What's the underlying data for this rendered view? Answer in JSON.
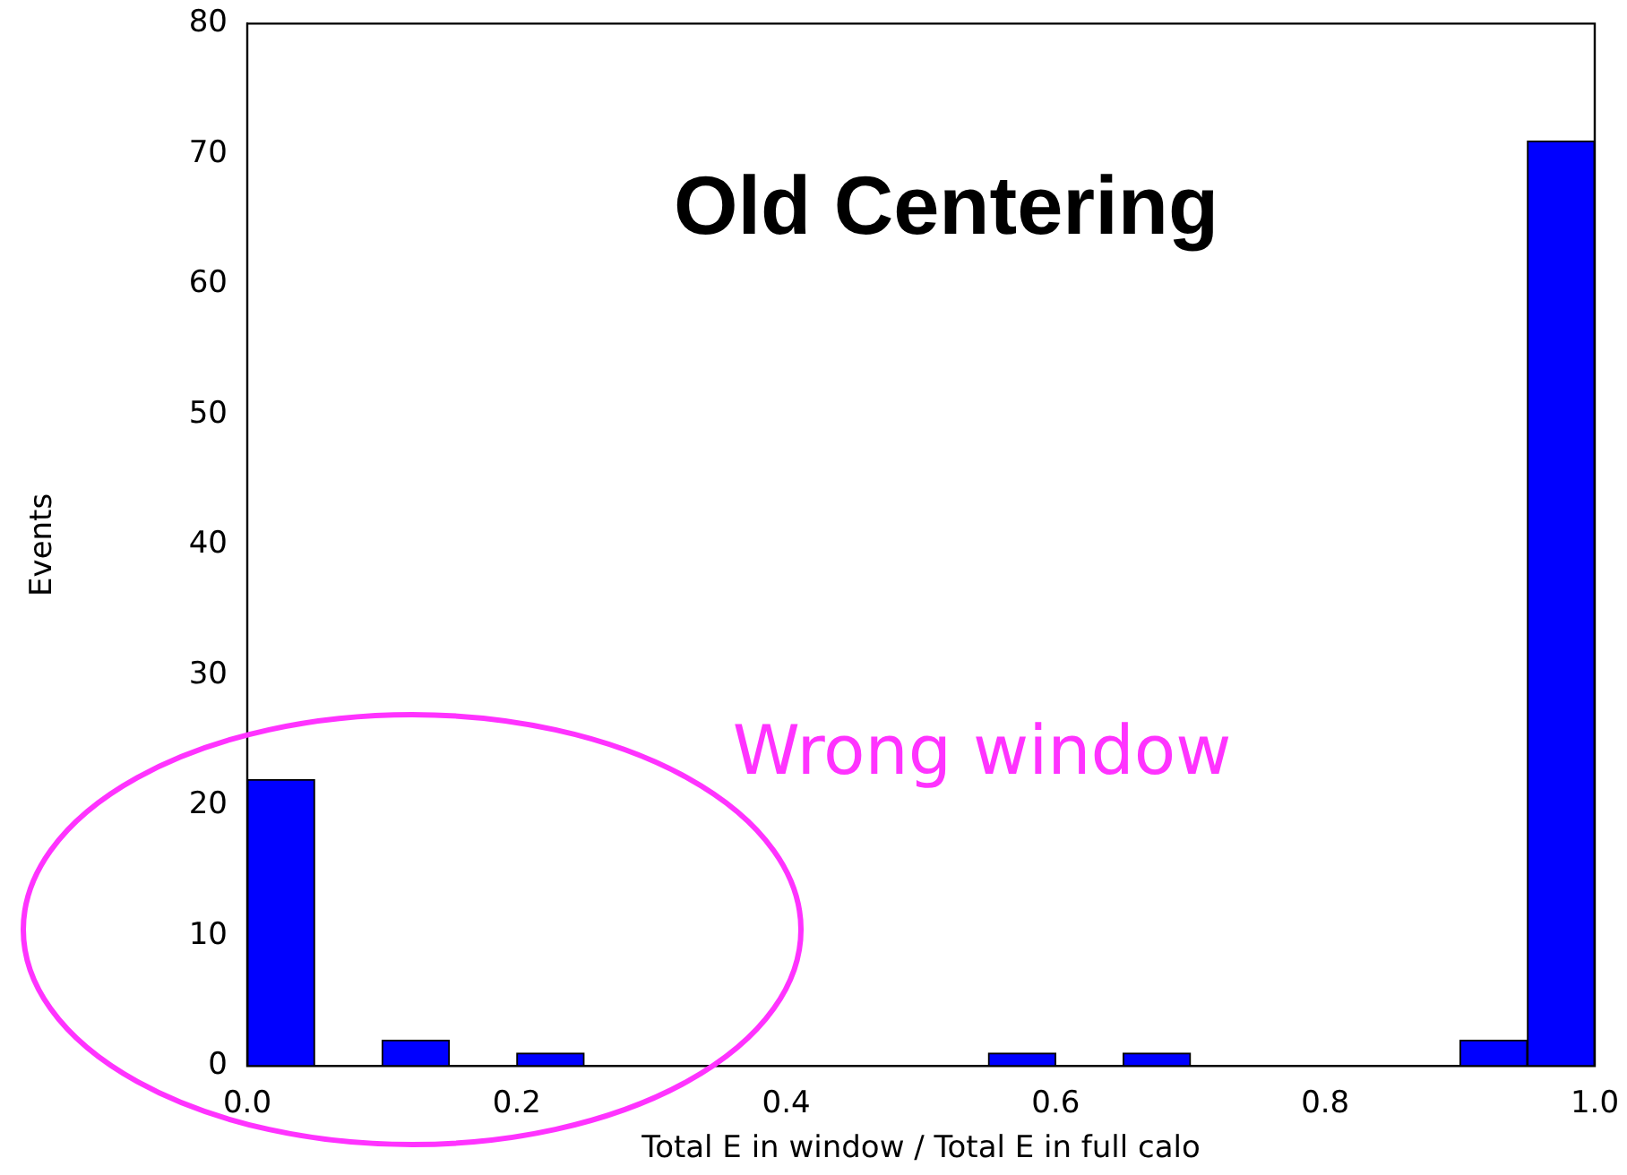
{
  "chart_data": {
    "type": "histogram",
    "title": "Old Centering",
    "xlabel": "Total E in window / Total E in full calo",
    "ylabel": "Events",
    "bins": [
      0,
      0.05,
      0.1,
      0.15,
      0.2,
      0.25,
      0.3,
      0.35,
      0.4,
      0.45,
      0.5,
      0.55,
      0.6,
      0.65,
      0.7,
      0.75,
      0.8,
      0.85,
      0.9,
      0.95,
      1.0
    ],
    "values": [
      22,
      0,
      2,
      0,
      1,
      0,
      0,
      0,
      0,
      0,
      0,
      1,
      0,
      1,
      0,
      0,
      0,
      0,
      2,
      71
    ],
    "color": "#0000ff",
    "xlim": [
      0,
      1
    ],
    "xticks": [
      {
        "value": 0,
        "label": "0.0"
      },
      {
        "value": 0.2,
        "label": "0.2"
      },
      {
        "value": 0.4,
        "label": "0.4"
      },
      {
        "value": 0.6,
        "label": "0.6"
      },
      {
        "value": 0.8,
        "label": "0.8"
      },
      {
        "value": 1,
        "label": "1.0"
      }
    ],
    "ylim": [
      0,
      80
    ],
    "yticks": [
      0,
      10,
      20,
      30,
      40,
      50,
      60,
      70,
      80
    ],
    "annotations": [
      "Wrong window"
    ],
    "grid": false,
    "legend": false
  }
}
